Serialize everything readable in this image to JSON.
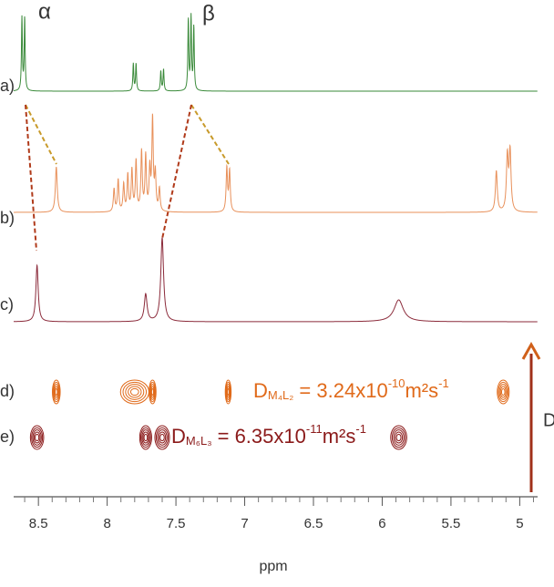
{
  "chart_data": {
    "type": "nmr",
    "xlabel": "ppm",
    "xlim": [
      8.68,
      4.87
    ],
    "xticks": [
      8.5,
      8.0,
      7.5,
      7.0,
      6.5,
      6.0,
      5.5,
      5.0
    ],
    "xminorticks": [
      8.6,
      8.4,
      8.3,
      8.2,
      8.1,
      7.9,
      7.8,
      7.7,
      7.6,
      7.4,
      7.3,
      7.2,
      7.1,
      6.9,
      6.8,
      6.7,
      6.6,
      6.4,
      6.3,
      6.2,
      6.1,
      5.9,
      5.8,
      5.7,
      5.6,
      5.4,
      5.3,
      5.2,
      5.1,
      4.9
    ],
    "annotations": [
      "α",
      "β"
    ],
    "spectra": [
      {
        "name": "a)",
        "color": "#3a8a3a",
        "peaks": [
          [
            8.62,
            80,
            0.004
          ],
          [
            8.6,
            80,
            0.004
          ],
          [
            7.81,
            30,
            0.004
          ],
          [
            7.79,
            30,
            0.004
          ],
          [
            7.61,
            22,
            0.004
          ],
          [
            7.59,
            24,
            0.004
          ],
          [
            7.41,
            78,
            0.004
          ],
          [
            7.39,
            80,
            0.004
          ],
          [
            7.37,
            70,
            0.004
          ]
        ]
      },
      {
        "name": "b)",
        "color": "#e8905a",
        "peaks": [
          [
            8.37,
            50,
            0.008
          ],
          [
            7.95,
            25,
            0.006
          ],
          [
            7.92,
            35,
            0.006
          ],
          [
            7.88,
            30,
            0.006
          ],
          [
            7.85,
            40,
            0.006
          ],
          [
            7.82,
            45,
            0.006
          ],
          [
            7.79,
            55,
            0.006
          ],
          [
            7.75,
            65,
            0.006
          ],
          [
            7.72,
            60,
            0.006
          ],
          [
            7.69,
            45,
            0.006
          ],
          [
            7.65,
            40,
            0.006
          ],
          [
            7.62,
            25,
            0.006
          ],
          [
            7.67,
            100,
            0.006
          ],
          [
            7.13,
            48,
            0.006
          ],
          [
            7.11,
            45,
            0.006
          ],
          [
            5.17,
            45,
            0.008
          ],
          [
            5.09,
            60,
            0.008
          ],
          [
            5.07,
            65,
            0.008
          ]
        ]
      },
      {
        "name": "c)",
        "color": "#8b2a3a",
        "peaks": [
          [
            8.51,
            62,
            0.01
          ],
          [
            7.72,
            30,
            0.012
          ],
          [
            7.6,
            92,
            0.012
          ],
          [
            5.88,
            24,
            0.04
          ]
        ]
      }
    ],
    "diffusion": [
      {
        "name": "d)",
        "color": "#e06a1a",
        "label": {
          "main": "D",
          "sub": "M₄L₂",
          "eq": " = 3.24x10",
          "exp": "-10",
          "unit": "m²s",
          "exp2": "-1"
        },
        "spots": [
          [
            8.37,
            0.015
          ],
          [
            7.8,
            0.09
          ],
          [
            7.67,
            0.012
          ],
          [
            7.12,
            0.008
          ],
          [
            5.12,
            0.03
          ]
        ]
      },
      {
        "name": "e)",
        "color": "#8b1a1a",
        "label": {
          "main": "D",
          "sub": "M₆L₃",
          "eq": " = 6.35x10",
          "exp": "-11",
          "unit": "m²s",
          "exp2": "-1"
        },
        "spots": [
          [
            8.51,
            0.035
          ],
          [
            7.72,
            0.03
          ],
          [
            7.6,
            0.04
          ],
          [
            5.88,
            0.045
          ]
        ]
      }
    ],
    "arrow_label": "D"
  }
}
